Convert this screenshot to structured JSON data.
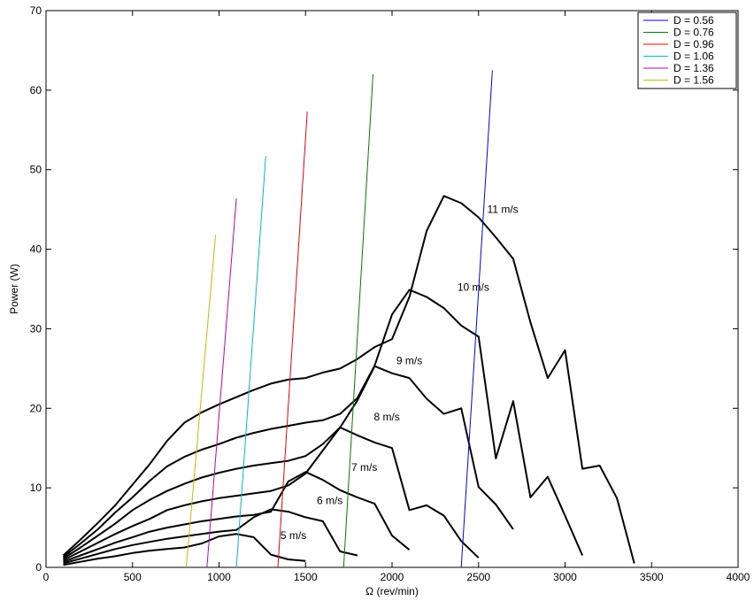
{
  "chart_data": {
    "type": "line",
    "title": "",
    "xlabel": "Ω (rev/min)",
    "ylabel": "Power (W)",
    "xlim": [
      0,
      4000
    ],
    "ylim": [
      0,
      70
    ],
    "xticks": [
      0,
      500,
      1000,
      1500,
      2000,
      2500,
      3000,
      3500,
      4000
    ],
    "yticks": [
      0,
      10,
      20,
      30,
      40,
      50,
      60,
      70
    ],
    "grid": false,
    "legend_position": "top-right",
    "diameter_lines": [
      {
        "name": "D = 0.56",
        "color": "#0000ff",
        "x": [
          2400,
          2580
        ],
        "y": [
          0,
          62.5
        ]
      },
      {
        "name": "D = 0.76",
        "color": "#008000",
        "x": [
          1720,
          1890
        ],
        "y": [
          0,
          62
        ]
      },
      {
        "name": "D = 0.96",
        "color": "#ff0000",
        "x": [
          1340,
          1510
        ],
        "y": [
          0,
          57.3
        ]
      },
      {
        "name": "D = 1.06",
        "color": "#00bfbf",
        "x": [
          1100,
          1270
        ],
        "y": [
          0,
          51.7
        ]
      },
      {
        "name": "D = 1.36",
        "color": "#bf00bf",
        "x": [
          930,
          1100
        ],
        "y": [
          0,
          46.4
        ]
      },
      {
        "name": "D = 1.56",
        "color": "#bfbf00",
        "x": [
          810,
          980
        ],
        "y": [
          0,
          41.8
        ]
      }
    ],
    "speed_curves": [
      {
        "label": "5 m/s",
        "color": "#000000",
        "x": [
          100,
          200,
          300,
          400,
          500,
          600,
          700,
          800,
          900,
          1000,
          1100,
          1200,
          1300,
          1400,
          1500
        ],
        "y": [
          0.3,
          0.7,
          1.1,
          1.4,
          1.8,
          2.1,
          2.3,
          2.5,
          3.0,
          3.9,
          4.2,
          3.8,
          1.6,
          1.0,
          0.8
        ]
      },
      {
        "label": "6 m/s",
        "color": "#000000",
        "x": [
          100,
          200,
          300,
          400,
          500,
          600,
          700,
          800,
          900,
          1000,
          1100,
          1200,
          1300,
          1400,
          1500,
          1600,
          1700,
          1800
        ],
        "y": [
          0.5,
          1.1,
          1.7,
          2.3,
          2.8,
          3.2,
          3.6,
          3.9,
          4.2,
          4.5,
          4.7,
          6.3,
          7.3,
          7.0,
          6.3,
          5.8,
          2.0,
          1.5
        ]
      },
      {
        "label": "7 m/s",
        "color": "#000000",
        "x": [
          100,
          200,
          300,
          400,
          500,
          600,
          700,
          800,
          900,
          1000,
          1100,
          1200,
          1300,
          1400,
          1500,
          1600,
          1700,
          1800,
          1900,
          2000,
          2100
        ],
        "y": [
          0.7,
          1.5,
          2.3,
          3.1,
          3.8,
          4.5,
          5.0,
          5.4,
          5.8,
          6.1,
          6.4,
          6.6,
          7.0,
          10.8,
          12.0,
          11.0,
          9.7,
          8.8,
          8.0,
          4.0,
          2.2
        ]
      },
      {
        "label": "8 m/s",
        "color": "#000000",
        "x": [
          100,
          200,
          300,
          400,
          500,
          600,
          700,
          800,
          900,
          1000,
          1100,
          1200,
          1300,
          1400,
          1500,
          1600,
          1700,
          1800,
          1900,
          2000,
          2100,
          2200,
          2300,
          2400,
          2500
        ],
        "y": [
          0.9,
          2.0,
          3.1,
          4.2,
          5.2,
          6.1,
          7.2,
          7.8,
          8.3,
          8.7,
          9.0,
          9.3,
          9.6,
          10.3,
          11.8,
          14.7,
          17.6,
          16.6,
          15.7,
          15.0,
          7.2,
          7.8,
          6.5,
          3.3,
          1.2
        ]
      },
      {
        "label": "9 m/s",
        "color": "#000000",
        "x": [
          100,
          200,
          300,
          400,
          500,
          600,
          700,
          800,
          900,
          1000,
          1100,
          1200,
          1300,
          1400,
          1500,
          1600,
          1700,
          1800,
          1900,
          2000,
          2100,
          2200,
          2300,
          2400,
          2500,
          2600,
          2700
        ],
        "y": [
          1.1,
          2.5,
          4.0,
          5.5,
          7.2,
          8.5,
          9.6,
          10.5,
          11.3,
          11.9,
          12.4,
          12.8,
          13.1,
          13.4,
          14.0,
          15.5,
          17.6,
          21.0,
          25.3,
          24.4,
          23.8,
          21.2,
          19.3,
          20.0,
          10.1,
          7.9,
          4.8
        ]
      },
      {
        "label": "10 m/s",
        "color": "#000000",
        "x": [
          100,
          200,
          300,
          400,
          500,
          600,
          700,
          800,
          900,
          1000,
          1100,
          1200,
          1300,
          1400,
          1500,
          1600,
          1700,
          1800,
          1900,
          2000,
          2100,
          2200,
          2300,
          2400,
          2500,
          2600,
          2700,
          2800,
          2900,
          3000,
          3100
        ],
        "y": [
          1.3,
          3.0,
          4.8,
          6.9,
          8.8,
          10.9,
          12.7,
          13.9,
          14.8,
          15.5,
          16.3,
          16.9,
          17.4,
          17.8,
          18.2,
          18.5,
          19.3,
          21.3,
          25.4,
          31.8,
          34.9,
          34.0,
          32.6,
          30.4,
          29.0,
          13.7,
          20.9,
          8.8,
          11.4,
          6.5,
          1.5
        ]
      },
      {
        "label": "11 m/s",
        "color": "#000000",
        "x": [
          100,
          200,
          300,
          400,
          500,
          600,
          700,
          800,
          900,
          1000,
          1100,
          1200,
          1300,
          1400,
          1500,
          1600,
          1700,
          1800,
          1900,
          2000,
          2100,
          2200,
          2300,
          2400,
          2500,
          2600,
          2700,
          2800,
          2900,
          3000,
          3100,
          3200,
          3300,
          3400
        ],
        "y": [
          1.5,
          3.5,
          5.6,
          7.8,
          10.4,
          13.0,
          15.9,
          18.2,
          19.5,
          20.5,
          21.4,
          22.3,
          23.1,
          23.6,
          23.8,
          24.5,
          25.0,
          26.2,
          27.7,
          28.7,
          34.0,
          42.3,
          46.7,
          45.8,
          44.0,
          41.5,
          38.8,
          30.8,
          23.8,
          27.3,
          12.4,
          12.8,
          8.7,
          0.5
        ]
      }
    ],
    "annotations": [
      {
        "text": "11 m/s",
        "x": 2640,
        "y": 45.0
      },
      {
        "text": "10 m/s",
        "x": 2470,
        "y": 35.2
      },
      {
        "text": "9 m/s",
        "x": 2100,
        "y": 26.0
      },
      {
        "text": "8 m/s",
        "x": 1970,
        "y": 18.9
      },
      {
        "text": "7 m/s",
        "x": 1840,
        "y": 12.6
      },
      {
        "text": "6 m/s",
        "x": 1640,
        "y": 8.4
      },
      {
        "text": "5 m/s",
        "x": 1430,
        "y": 4.0
      }
    ]
  }
}
